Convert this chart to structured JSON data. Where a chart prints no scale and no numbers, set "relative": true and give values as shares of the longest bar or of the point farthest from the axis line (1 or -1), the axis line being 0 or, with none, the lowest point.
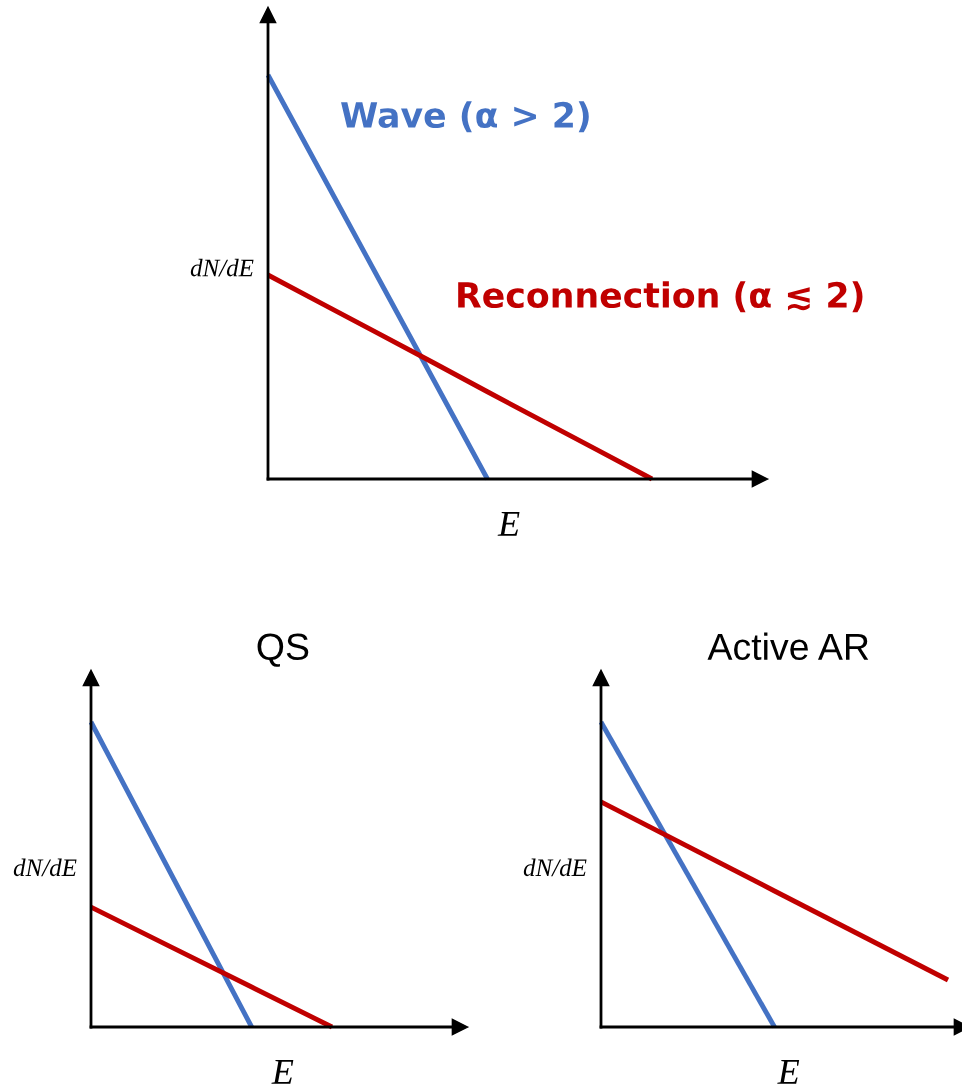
{
  "chart_data": [
    {
      "type": "line",
      "relative": true,
      "xlabel": "E",
      "ylabel": "dN/dE",
      "marker": "none",
      "line_style": "solid",
      "categories": [
        null,
        null,
        null,
        null,
        null,
        null,
        null,
        null
      ],
      "series": [
        {
          "name": "Wave (α > 2)",
          "color": "#4472c4",
          "values": [
            1,
            0.75,
            0.5,
            0.25,
            0,
            null,
            null,
            null
          ]
        },
        {
          "name": "Reconnection (α ≲ 2)",
          "color": "#c00000",
          "values": [
            0.505,
            0.433,
            0.361,
            0.289,
            0.216,
            0.144,
            0.072,
            0
          ]
        }
      ]
    },
    {
      "type": "line",
      "relative": true,
      "title": "QS",
      "xlabel": "E",
      "ylabel": "dN/dE",
      "marker": "none",
      "line_style": "solid",
      "categories": [
        null,
        null,
        null,
        null
      ],
      "series": [
        {
          "color": "#4472c4",
          "values": [
            1,
            0.5,
            0,
            null
          ]
        },
        {
          "color": "#c00000",
          "values": [
            0.393,
            0.262,
            0.131,
            0
          ]
        }
      ]
    },
    {
      "type": "line",
      "relative": true,
      "title": "Active AR",
      "xlabel": "E",
      "ylabel": "dN/dE",
      "marker": "none",
      "line_style": "solid",
      "categories": [
        null,
        null,
        null
      ],
      "series": [
        {
          "color": "#4472c4",
          "values": [
            1,
            0,
            null
          ]
        },
        {
          "color": "#c00000",
          "values": [
            0.738,
            0.446,
            0.154
          ]
        }
      ]
    }
  ]
}
